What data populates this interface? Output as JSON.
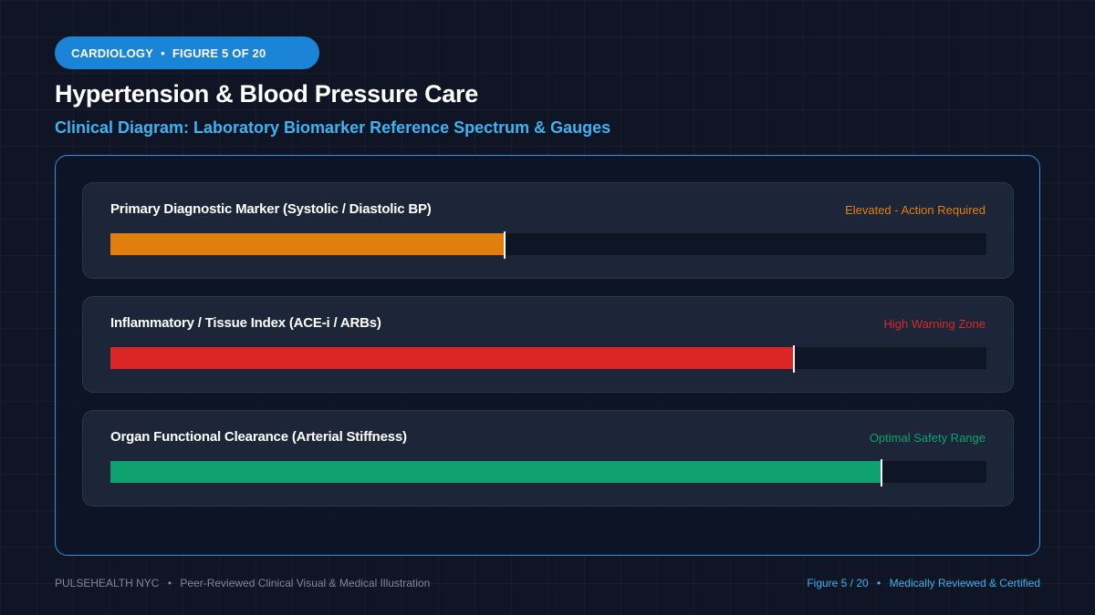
{
  "badge": {
    "category": "CARDIOLOGY",
    "separator": "•",
    "figure": "FIGURE 5 OF 20",
    "color": "#1a84d6"
  },
  "header": {
    "title": "Hypertension & Blood Pressure Care",
    "subtitle": "Clinical Diagram: Laboratory Biomarker Reference Spectrum & Gauges",
    "subtitle_color": "#3fb2f0"
  },
  "panel": {
    "border_color": "#2f8fe0"
  },
  "gauges": [
    {
      "label": "Primary Diagnostic Marker (Systolic / Diastolic BP)",
      "status": "Elevated - Action Required",
      "level": 0.45,
      "color": "#e07e0e"
    },
    {
      "label": "Inflammatory / Tissue Index (ACE-i / ARBs)",
      "status": "High Warning Zone",
      "level": 0.78,
      "color": "#dc2626"
    },
    {
      "label": "Organ Functional Clearance (Arterial Stiffness)",
      "status": "Optimal Safety Range",
      "level": 0.88,
      "color": "#0fa06f"
    }
  ],
  "footer": {
    "brand": "PULSEHEALTH NYC",
    "separator": "•",
    "tagline": "Peer-Reviewed Clinical Visual & Medical Illustration",
    "figure": "Figure 5 / 20",
    "certification": "Medically Reviewed & Certified",
    "right_color": "#3fb2f0"
  }
}
